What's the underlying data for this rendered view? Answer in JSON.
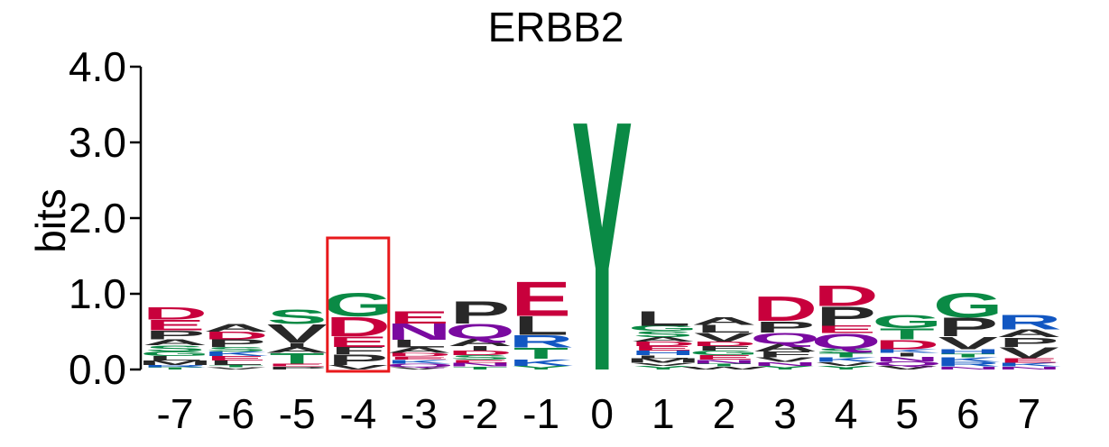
{
  "chart_data": {
    "type": "sequence-logo",
    "title": "ERBB2",
    "ylabel": "bits",
    "ylim": [
      0,
      4.0
    ],
    "y_ticks": [
      "0.0",
      "1.0",
      "2.0",
      "3.0",
      "4.0"
    ],
    "y_tick_values": [
      0,
      1,
      2,
      3,
      4
    ],
    "positions": [
      "-7",
      "-6",
      "-5",
      "-4",
      "-3",
      "-2",
      "-1",
      "0",
      "1",
      "2",
      "3",
      "4",
      "5",
      "6",
      "7"
    ],
    "highlight_position": "-4",
    "highlight_color": "#e8191c",
    "colors": {
      "acidic": "#c8003c",
      "polar": "#0a8a45",
      "basic": "#1257c2",
      "amide": "#7a0aa0",
      "hydrophobic": "#282828"
    },
    "letter_colors": {
      "D": "#c8003c",
      "E": "#c8003c",
      "G": "#0a8a45",
      "S": "#0a8a45",
      "T": "#0a8a45",
      "Y": "#0a8a45",
      "C": "#0a8a45",
      "R": "#1257c2",
      "K": "#1257c2",
      "H": "#1257c2",
      "N": "#7a0aa0",
      "Q": "#7a0aa0",
      "A": "#282828",
      "V": "#282828",
      "L": "#282828",
      "I": "#282828",
      "P": "#282828",
      "F": "#282828",
      "W": "#282828",
      "M": "#282828"
    },
    "columns": [
      {
        "position": "-7",
        "letters": [
          {
            "aa": "T",
            "bits": 0.03
          },
          {
            "aa": "R",
            "bits": 0.03
          },
          {
            "aa": "M",
            "bits": 0.06
          },
          {
            "aa": "L",
            "bits": 0.06
          },
          {
            "aa": "G",
            "bits": 0.06
          },
          {
            "aa": "S",
            "bits": 0.08
          },
          {
            "aa": "A",
            "bits": 0.08
          },
          {
            "aa": "P",
            "bits": 0.12
          },
          {
            "aa": "E",
            "bits": 0.14
          },
          {
            "aa": "D",
            "bits": 0.17
          }
        ]
      },
      {
        "position": "-6",
        "letters": [
          {
            "aa": "V",
            "bits": 0.03
          },
          {
            "aa": "T",
            "bits": 0.03
          },
          {
            "aa": "L",
            "bits": 0.06
          },
          {
            "aa": "E",
            "bits": 0.06
          },
          {
            "aa": "K",
            "bits": 0.06
          },
          {
            "aa": "S",
            "bits": 0.06
          },
          {
            "aa": "P",
            "bits": 0.1
          },
          {
            "aa": "D",
            "bits": 0.1
          },
          {
            "aa": "A",
            "bits": 0.1
          }
        ]
      },
      {
        "position": "-5",
        "letters": [
          {
            "aa": "P",
            "bits": 0.04
          },
          {
            "aa": "E",
            "bits": 0.04
          },
          {
            "aa": "T",
            "bits": 0.14
          },
          {
            "aa": "A",
            "bits": 0.08
          },
          {
            "aa": "I",
            "bits": 0.05
          },
          {
            "aa": "V",
            "bits": 0.25
          },
          {
            "aa": "S",
            "bits": 0.2
          }
        ]
      },
      {
        "position": "-4",
        "letters": [
          {
            "aa": "V",
            "bits": 0.06
          },
          {
            "aa": "P",
            "bits": 0.14
          },
          {
            "aa": "F",
            "bits": 0.1
          },
          {
            "aa": "E",
            "bits": 0.14
          },
          {
            "aa": "D",
            "bits": 0.26
          },
          {
            "aa": "G",
            "bits": 0.32
          }
        ]
      },
      {
        "position": "-3",
        "letters": [
          {
            "aa": "V",
            "bits": 0.03
          },
          {
            "aa": "Q",
            "bits": 0.05
          },
          {
            "aa": "K",
            "bits": 0.05
          },
          {
            "aa": "E",
            "bits": 0.04
          },
          {
            "aa": "D",
            "bits": 0.05
          },
          {
            "aa": "A",
            "bits": 0.07
          },
          {
            "aa": "L",
            "bits": 0.1
          },
          {
            "aa": "N",
            "bits": 0.22
          },
          {
            "aa": "E",
            "bits": 0.17
          }
        ]
      },
      {
        "position": "-2",
        "letters": [
          {
            "aa": "T",
            "bits": 0.04
          },
          {
            "aa": "N",
            "bits": 0.05
          },
          {
            "aa": "E",
            "bits": 0.04
          },
          {
            "aa": "S",
            "bits": 0.06
          },
          {
            "aa": "D",
            "bits": 0.06
          },
          {
            "aa": "I",
            "bits": 0.06
          },
          {
            "aa": "A",
            "bits": 0.1
          },
          {
            "aa": "Q",
            "bits": 0.2
          },
          {
            "aa": "P",
            "bits": 0.3
          }
        ]
      },
      {
        "position": "-1",
        "letters": [
          {
            "aa": "Y",
            "bits": 0.05
          },
          {
            "aa": "K",
            "bits": 0.09
          },
          {
            "aa": "T",
            "bits": 0.15
          },
          {
            "aa": "R",
            "bits": 0.17
          },
          {
            "aa": "L",
            "bits": 0.25
          },
          {
            "aa": "E",
            "bits": 0.47
          }
        ]
      },
      {
        "position": "0",
        "letters": [
          {
            "aa": "Y",
            "bits": 3.4
          }
        ]
      },
      {
        "position": "1",
        "letters": [
          {
            "aa": "Y",
            "bits": 0.05
          },
          {
            "aa": "V",
            "bits": 0.04
          },
          {
            "aa": "M",
            "bits": 0.06
          },
          {
            "aa": "L",
            "bits": 0.04
          },
          {
            "aa": "H",
            "bits": 0.06
          },
          {
            "aa": "E",
            "bits": 0.06
          },
          {
            "aa": "D",
            "bits": 0.06
          },
          {
            "aa": "A",
            "bits": 0.06
          },
          {
            "aa": "S",
            "bits": 0.08
          },
          {
            "aa": "G",
            "bits": 0.07
          },
          {
            "aa": "L",
            "bits": 0.2
          }
        ]
      },
      {
        "position": "2",
        "letters": [
          {
            "aa": "W",
            "bits": 0.04
          },
          {
            "aa": "T",
            "bits": 0.04
          },
          {
            "aa": "N",
            "bits": 0.05
          },
          {
            "aa": "E",
            "bits": 0.06
          },
          {
            "aa": "G",
            "bits": 0.06
          },
          {
            "aa": "F",
            "bits": 0.06
          },
          {
            "aa": "D",
            "bits": 0.06
          },
          {
            "aa": "V",
            "bits": 0.12
          },
          {
            "aa": "L",
            "bits": 0.1
          },
          {
            "aa": "A",
            "bits": 0.1
          }
        ]
      },
      {
        "position": "3",
        "letters": [
          {
            "aa": "Y",
            "bits": 0.05
          },
          {
            "aa": "N",
            "bits": 0.05
          },
          {
            "aa": "V",
            "bits": 0.06
          },
          {
            "aa": "F",
            "bits": 0.08
          },
          {
            "aa": "A",
            "bits": 0.1
          },
          {
            "aa": "Q",
            "bits": 0.15
          },
          {
            "aa": "P",
            "bits": 0.15
          },
          {
            "aa": "D",
            "bits": 0.33
          }
        ]
      },
      {
        "position": "4",
        "letters": [
          {
            "aa": "Y",
            "bits": 0.05
          },
          {
            "aa": "V",
            "bits": 0.05
          },
          {
            "aa": "K",
            "bits": 0.06
          },
          {
            "aa": "T",
            "bits": 0.06
          },
          {
            "aa": "S",
            "bits": 0.06
          },
          {
            "aa": "Q",
            "bits": 0.2
          },
          {
            "aa": "E",
            "bits": 0.1
          },
          {
            "aa": "P",
            "bits": 0.26
          },
          {
            "aa": "D",
            "bits": 0.28
          }
        ]
      },
      {
        "position": "5",
        "letters": [
          {
            "aa": "V",
            "bits": 0.05
          },
          {
            "aa": "Q",
            "bits": 0.06
          },
          {
            "aa": "N",
            "bits": 0.06
          },
          {
            "aa": "I",
            "bits": 0.05
          },
          {
            "aa": "K",
            "bits": 0.05
          },
          {
            "aa": "D",
            "bits": 0.13
          },
          {
            "aa": "T",
            "bits": 0.15
          },
          {
            "aa": "G",
            "bits": 0.18
          }
        ]
      },
      {
        "position": "6",
        "letters": [
          {
            "aa": "N",
            "bits": 0.04
          },
          {
            "aa": "R",
            "bits": 0.06
          },
          {
            "aa": "K",
            "bits": 0.06
          },
          {
            "aa": "T",
            "bits": 0.05
          },
          {
            "aa": "H",
            "bits": 0.06
          },
          {
            "aa": "V",
            "bits": 0.17
          },
          {
            "aa": "P",
            "bits": 0.25
          },
          {
            "aa": "G",
            "bits": 0.33
          }
        ]
      },
      {
        "position": "7",
        "letters": [
          {
            "aa": "N",
            "bits": 0.04
          },
          {
            "aa": "K",
            "bits": 0.05
          },
          {
            "aa": "E",
            "bits": 0.06
          },
          {
            "aa": "V",
            "bits": 0.15
          },
          {
            "aa": "P",
            "bits": 0.13
          },
          {
            "aa": "A",
            "bits": 0.1
          },
          {
            "aa": "R",
            "bits": 0.2
          }
        ]
      }
    ]
  }
}
